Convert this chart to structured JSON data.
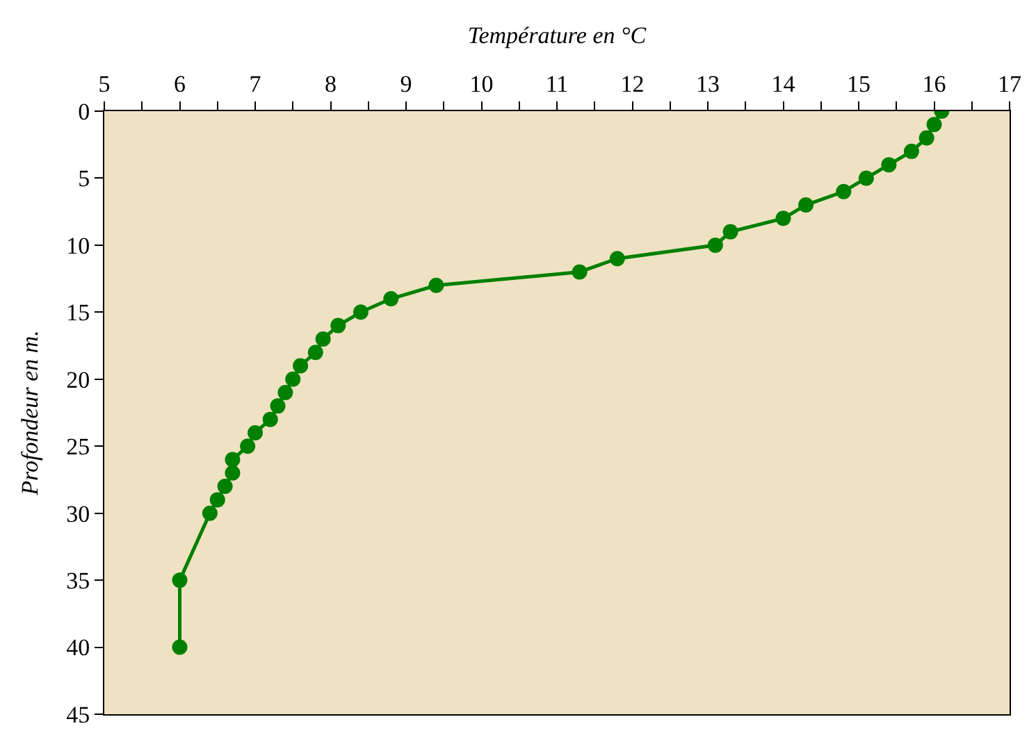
{
  "chart_data": {
    "type": "line",
    "xlabel": "Température en °C",
    "ylabel": "Profondeur en m.",
    "x": [
      16.1,
      16.0,
      15.9,
      15.7,
      15.4,
      15.1,
      14.8,
      14.3,
      14.0,
      13.3,
      13.1,
      11.8,
      11.3,
      9.4,
      8.8,
      8.4,
      8.1,
      7.9,
      7.8,
      7.6,
      7.5,
      7.4,
      7.3,
      7.2,
      7.0,
      6.9,
      6.7,
      6.7,
      6.6,
      6.5,
      6.4,
      6.0,
      6.0
    ],
    "series": [
      {
        "color": "#008000",
        "values": [
          0,
          1,
          2,
          3,
          4,
          5,
          6,
          7,
          8,
          9,
          10,
          11,
          12,
          13,
          14,
          15,
          16,
          17,
          18,
          19,
          20,
          21,
          22,
          23,
          24,
          25,
          26,
          27,
          28,
          29,
          30,
          35,
          40
        ]
      }
    ],
    "xlim": [
      5,
      17
    ],
    "xticks": [
      5,
      {
        "value": 5.5,
        "label": null
      },
      6,
      {
        "value": 6.5,
        "label": null
      },
      7,
      {
        "value": 7.5,
        "label": null
      },
      8,
      {
        "value": 8.5,
        "label": null
      },
      9,
      {
        "value": 9.5,
        "label": null
      },
      10,
      {
        "value": 10.5,
        "label": null
      },
      11,
      {
        "value": 11.5,
        "label": null
      },
      12,
      {
        "value": 12.5,
        "label": null
      },
      13,
      {
        "value": 13.5,
        "label": null
      },
      14,
      {
        "value": 14.5,
        "label": null
      },
      15,
      {
        "value": 15.5,
        "label": null
      },
      16,
      {
        "value": 16.5,
        "label": null
      },
      17
    ],
    "ylim": [
      45,
      0
    ],
    "yticks": [
      0,
      5,
      10,
      15,
      20,
      25,
      30,
      35,
      40,
      45
    ],
    "grid": false,
    "marker": "circle",
    "line_style": "solid"
  }
}
